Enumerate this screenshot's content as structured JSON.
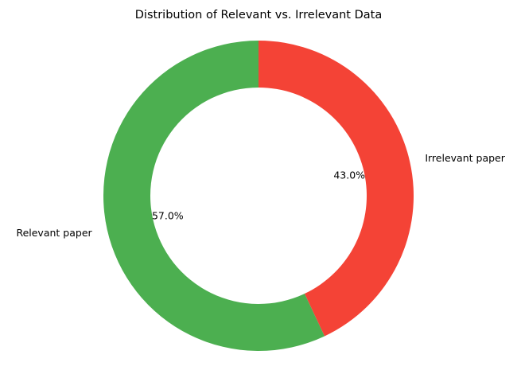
{
  "chart_data": {
    "type": "pie",
    "variant": "donut",
    "title": "Distribution of Relevant vs. Irrelevant Data",
    "slices": [
      {
        "label": "Irrelevant paper",
        "value": 43.0,
        "percent_label": "43.0%",
        "color": "#f44336"
      },
      {
        "label": "Relevant paper",
        "value": 57.0,
        "percent_label": "57.0%",
        "color": "#4caf50"
      }
    ],
    "start_angle_deg": 90,
    "direction": "clockwise",
    "legend": "none"
  }
}
